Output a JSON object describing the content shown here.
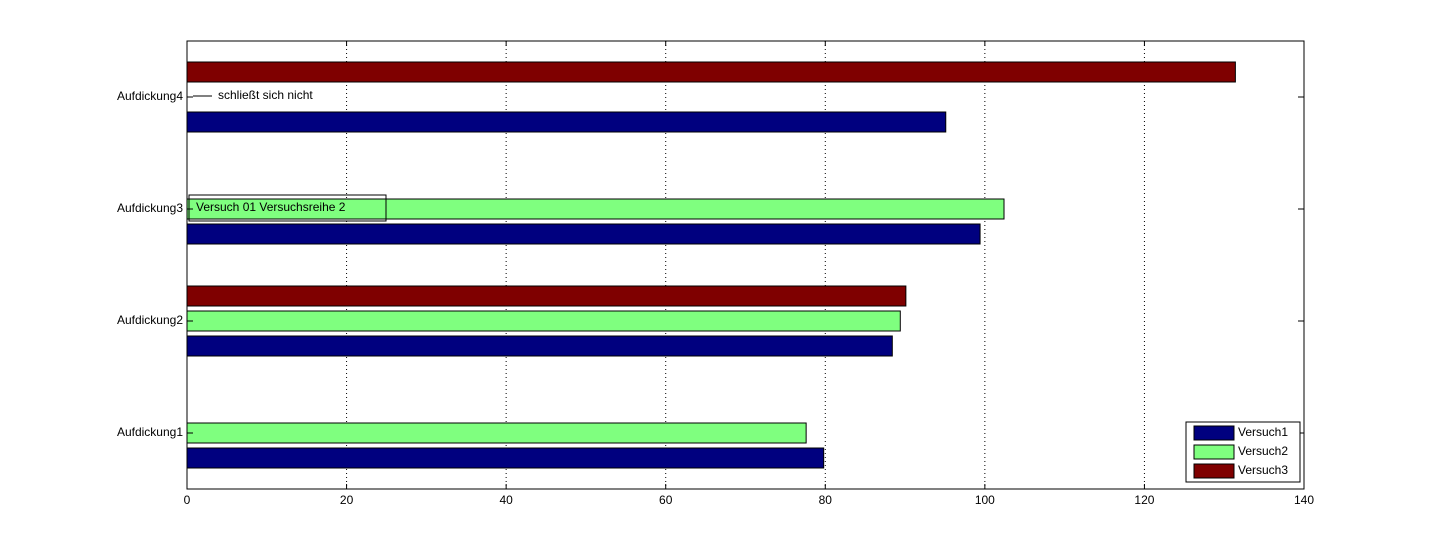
{
  "chart_data": {
    "type": "barh",
    "categories": [
      "Aufdickung1",
      "Aufdickung2",
      "Aufdickung3",
      "Aufdickung4"
    ],
    "series": [
      {
        "name": "Versuch1",
        "color": "#00007f",
        "values": [
          79.8,
          88.4,
          99.4,
          95.1
        ]
      },
      {
        "name": "Versuch2",
        "color": "#7fff7f",
        "values": [
          77.6,
          89.4,
          102.4,
          null
        ]
      },
      {
        "name": "Versuch3",
        "color": "#7f0000",
        "values": [
          null,
          90.1,
          null,
          131.4
        ]
      }
    ],
    "xlim": [
      0,
      140
    ],
    "xticks": [
      0,
      20,
      40,
      60,
      80,
      100,
      120,
      140
    ],
    "grid": true,
    "legend": "lower right",
    "annotations": [
      "schließt sich nicht",
      "Versuch 01 Versuchsreihe 2"
    ]
  }
}
